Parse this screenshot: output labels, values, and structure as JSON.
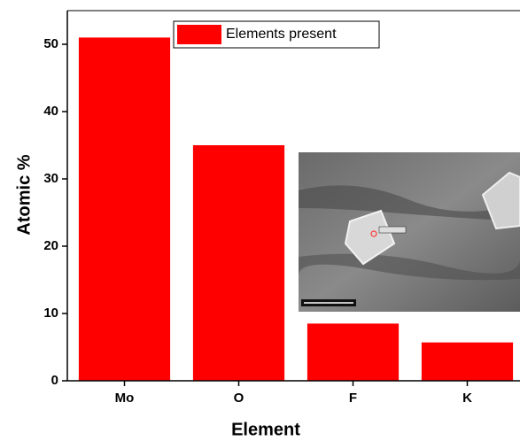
{
  "chart_data": {
    "type": "bar",
    "x_label": "Element",
    "y_label": "Atomic %",
    "categories": [
      "Mo",
      "O",
      "F",
      "K"
    ],
    "series": [
      {
        "name": "Elements present",
        "color": "#ff0000",
        "values": [
          51,
          35,
          8.5,
          5.7
        ]
      }
    ],
    "ylim": [
      0,
      55
    ],
    "yticks": [
      0,
      10,
      20,
      30,
      40,
      50
    ],
    "grid": false,
    "legend": "top"
  }
}
